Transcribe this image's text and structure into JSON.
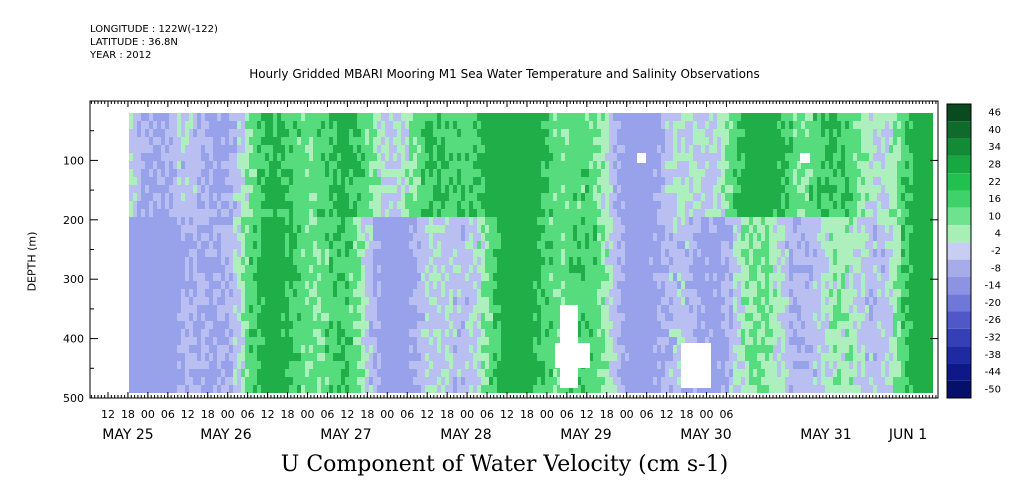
{
  "header": {
    "longitude": "LONGITUDE : 122W(-122)",
    "latitude": "LATITUDE : 36.8N",
    "year": "YEAR : 2012"
  },
  "chart_data": {
    "type": "heatmap",
    "title": "Hourly Gridded MBARI Mooring M1 Sea Water Temperature and Salinity Observations",
    "xlabel": "U Component of Water Velocity (cm s-1)",
    "ylabel": "DEPTH (m)",
    "ylim": [
      500,
      0
    ],
    "y_ticks": [
      100,
      200,
      300,
      400,
      500
    ],
    "x_hour_ticks": [
      "12",
      "18",
      "00",
      "06",
      "12",
      "18",
      "00",
      "06",
      "12",
      "18",
      "00",
      "06",
      "12",
      "18",
      "00",
      "06",
      "12",
      "18",
      "00",
      "06",
      "12",
      "18",
      "00",
      "06",
      "12",
      "18",
      "00",
      "06",
      "12",
      "18",
      "00",
      "06"
    ],
    "x_date_labels": [
      "MAY 25",
      "MAY 26",
      "MAY 27",
      "MAY 28",
      "MAY 29",
      "MAY 30",
      "MAY 31",
      "JUN  1"
    ],
    "colorbar": {
      "levels": [
        "46",
        "40",
        "34",
        "28",
        "22",
        "16",
        "10",
        "4",
        "-2",
        "-8",
        "-14",
        "-20",
        "-26",
        "-32",
        "-38",
        "-44",
        "-50"
      ],
      "colors": [
        "#0a4a1f",
        "#0f6b2b",
        "#138a36",
        "#18a842",
        "#22c04e",
        "#3fd26a",
        "#6ee28e",
        "#a8efb6",
        "#c8cdf2",
        "#a6acea",
        "#8b93e2",
        "#6f77d8",
        "#5058c8",
        "#3540b6",
        "#1e2aa2",
        "#0f1888",
        "#06106a"
      ]
    },
    "palette": {
      "green_strong": "#1fae48",
      "green_mid": "#56dc7c",
      "green_light": "#aef0bd",
      "blue_light": "#b9c0f1",
      "blue_mid": "#98a2ea",
      "gap": "#ffffff"
    }
  }
}
